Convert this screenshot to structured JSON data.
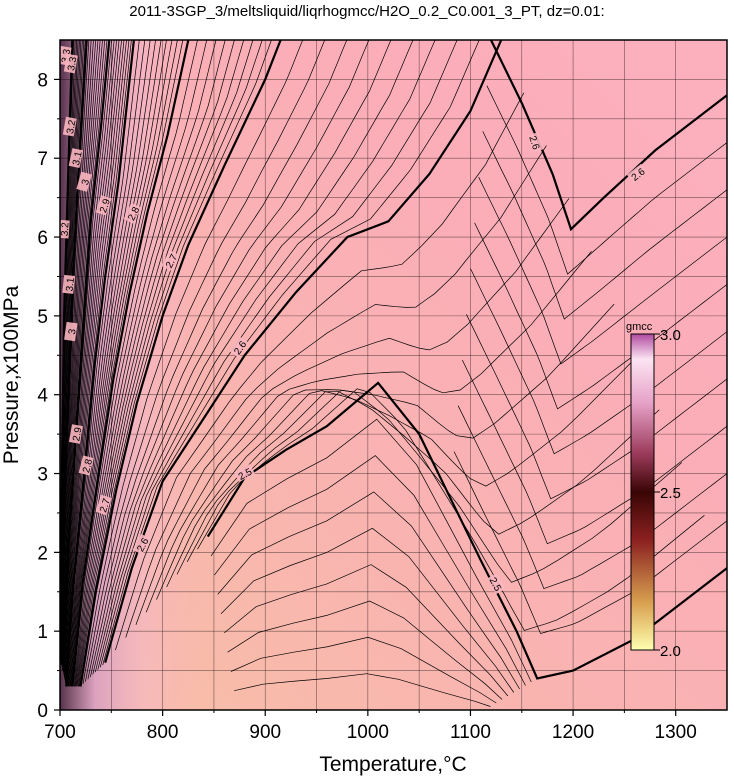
{
  "chart_data": {
    "type": "heatmap",
    "title": "2011-3SGP_3/meltsliquid/liqrhogmcc/H2O_0.2_C0.001_3_PT, dz=0.01:",
    "xlabel": "Temperature,°C",
    "ylabel": "Pressure,x100MPa",
    "xlim": [
      700,
      1350
    ],
    "ylim": [
      0,
      8.5
    ],
    "x_ticks": [
      "700",
      "800",
      "900",
      "1000",
      "1100",
      "1200",
      "1300"
    ],
    "y_ticks": [
      "0",
      "1",
      "2",
      "3",
      "4",
      "5",
      "6",
      "7",
      "8"
    ],
    "grid": true,
    "colorbar": {
      "title": "gmcc",
      "min": 2.0,
      "max": 3.0,
      "tick_labels": [
        "2.0",
        "2.5",
        "3.0"
      ],
      "placement": "right-inside"
    },
    "contour_interval": 0.01,
    "major_contours": [
      {
        "level": 2.5,
        "points": [
          [
            844,
            2.2
          ],
          [
            880,
            2.95
          ],
          [
            920,
            3.3
          ],
          [
            960,
            3.6
          ],
          [
            1010,
            4.15
          ],
          [
            1050,
            3.5
          ],
          [
            1080,
            2.7
          ],
          [
            1110,
            1.9
          ],
          [
            1145,
            1.0
          ],
          [
            1165,
            0.4
          ],
          [
            1200,
            0.5
          ],
          [
            1260,
            0.9
          ],
          [
            1350,
            1.8
          ]
        ]
      },
      {
        "level": 2.6,
        "points": [
          [
            744,
            0.6
          ],
          [
            770,
            1.8
          ],
          [
            800,
            2.9
          ],
          [
            840,
            3.7
          ],
          [
            880,
            4.5
          ],
          [
            930,
            5.3
          ],
          [
            980,
            6.0
          ],
          [
            1020,
            6.2
          ],
          [
            1060,
            6.8
          ],
          [
            1100,
            7.6
          ],
          [
            1130,
            8.5
          ]
        ]
      },
      {
        "level": 2.6,
        "points": [
          [
            1120,
            8.5
          ],
          [
            1150,
            7.7
          ],
          [
            1180,
            6.8
          ],
          [
            1198,
            6.1
          ],
          [
            1230,
            6.5
          ],
          [
            1280,
            7.1
          ],
          [
            1350,
            7.8
          ]
        ]
      },
      {
        "level": 2.7,
        "points": [
          [
            720,
            0.3
          ],
          [
            735,
            1.5
          ],
          [
            755,
            2.8
          ],
          [
            775,
            3.9
          ],
          [
            800,
            5.0
          ],
          [
            825,
            5.9
          ],
          [
            860,
            6.9
          ],
          [
            900,
            8.0
          ],
          [
            915,
            8.5
          ]
        ]
      },
      {
        "level": 2.8,
        "points": [
          [
            712,
            0.3
          ],
          [
            722,
            1.6
          ],
          [
            738,
            3.0
          ],
          [
            752,
            4.2
          ],
          [
            768,
            5.3
          ],
          [
            785,
            6.3
          ],
          [
            805,
            7.3
          ],
          [
            825,
            8.5
          ]
        ]
      },
      {
        "level": 2.9,
        "points": [
          [
            706,
            0.3
          ],
          [
            713,
            1.6
          ],
          [
            724,
            3.0
          ],
          [
            734,
            4.4
          ],
          [
            744,
            5.5
          ],
          [
            757,
            6.7
          ],
          [
            772,
            8.5
          ]
        ]
      },
      {
        "level": 3.0,
        "points": [
          [
            703,
            0.5
          ],
          [
            708,
            2.0
          ],
          [
            716,
            3.6
          ],
          [
            723,
            4.9
          ],
          [
            730,
            6.2
          ],
          [
            740,
            7.4
          ],
          [
            748,
            8.5
          ]
        ]
      },
      {
        "level": 3.1,
        "points": [
          [
            701,
            0.6
          ],
          [
            704,
            2.5
          ],
          [
            709,
            4.2
          ],
          [
            713,
            5.6
          ],
          [
            719,
            7.0
          ],
          [
            726,
            8.5
          ]
        ]
      },
      {
        "level": 3.2,
        "points": [
          [
            700,
            1.0
          ],
          [
            702,
            3.2
          ],
          [
            704,
            5.0
          ],
          [
            708,
            6.8
          ],
          [
            712,
            8.5
          ]
        ]
      }
    ],
    "contour_labels": [
      {
        "text": "2.5",
        "x": 880,
        "y": 3.0,
        "angle": -28
      },
      {
        "text": "2.5",
        "x": 1125,
        "y": 1.6,
        "angle": 62
      },
      {
        "text": "2.6",
        "x": 780,
        "y": 2.1,
        "angle": -62
      },
      {
        "text": "2.6",
        "x": 875,
        "y": 4.6,
        "angle": -55
      },
      {
        "text": "2.6",
        "x": 1163,
        "y": 7.2,
        "angle": 72
      },
      {
        "text": "2.6",
        "x": 1263,
        "y": 6.8,
        "angle": -38
      },
      {
        "text": "2.7",
        "x": 743,
        "y": 2.6,
        "angle": -72
      },
      {
        "text": "2.7",
        "x": 808,
        "y": 5.7,
        "angle": -62
      },
      {
        "text": "2.8",
        "x": 726,
        "y": 3.1,
        "angle": -76
      },
      {
        "text": "2.8",
        "x": 771,
        "y": 6.3,
        "angle": -64
      },
      {
        "text": "2.9",
        "x": 716,
        "y": 3.5,
        "angle": -80
      },
      {
        "text": "2.9",
        "x": 743,
        "y": 6.4,
        "angle": -72
      },
      {
        "text": "3",
        "x": 711,
        "y": 4.8,
        "angle": -82
      },
      {
        "text": "3",
        "x": 724,
        "y": 6.7,
        "angle": -75
      },
      {
        "text": "3.1",
        "x": 709,
        "y": 5.4,
        "angle": -84
      },
      {
        "text": "3.1",
        "x": 716,
        "y": 7.0,
        "angle": -78
      },
      {
        "text": "3.2",
        "x": 704,
        "y": 6.1,
        "angle": -86
      },
      {
        "text": "3.2",
        "x": 710,
        "y": 7.4,
        "angle": -80
      },
      {
        "text": "3.3",
        "x": 705,
        "y": 8.3,
        "angle": -80
      },
      {
        "text": "3.3",
        "x": 711,
        "y": 8.2,
        "angle": -80
      }
    ]
  }
}
